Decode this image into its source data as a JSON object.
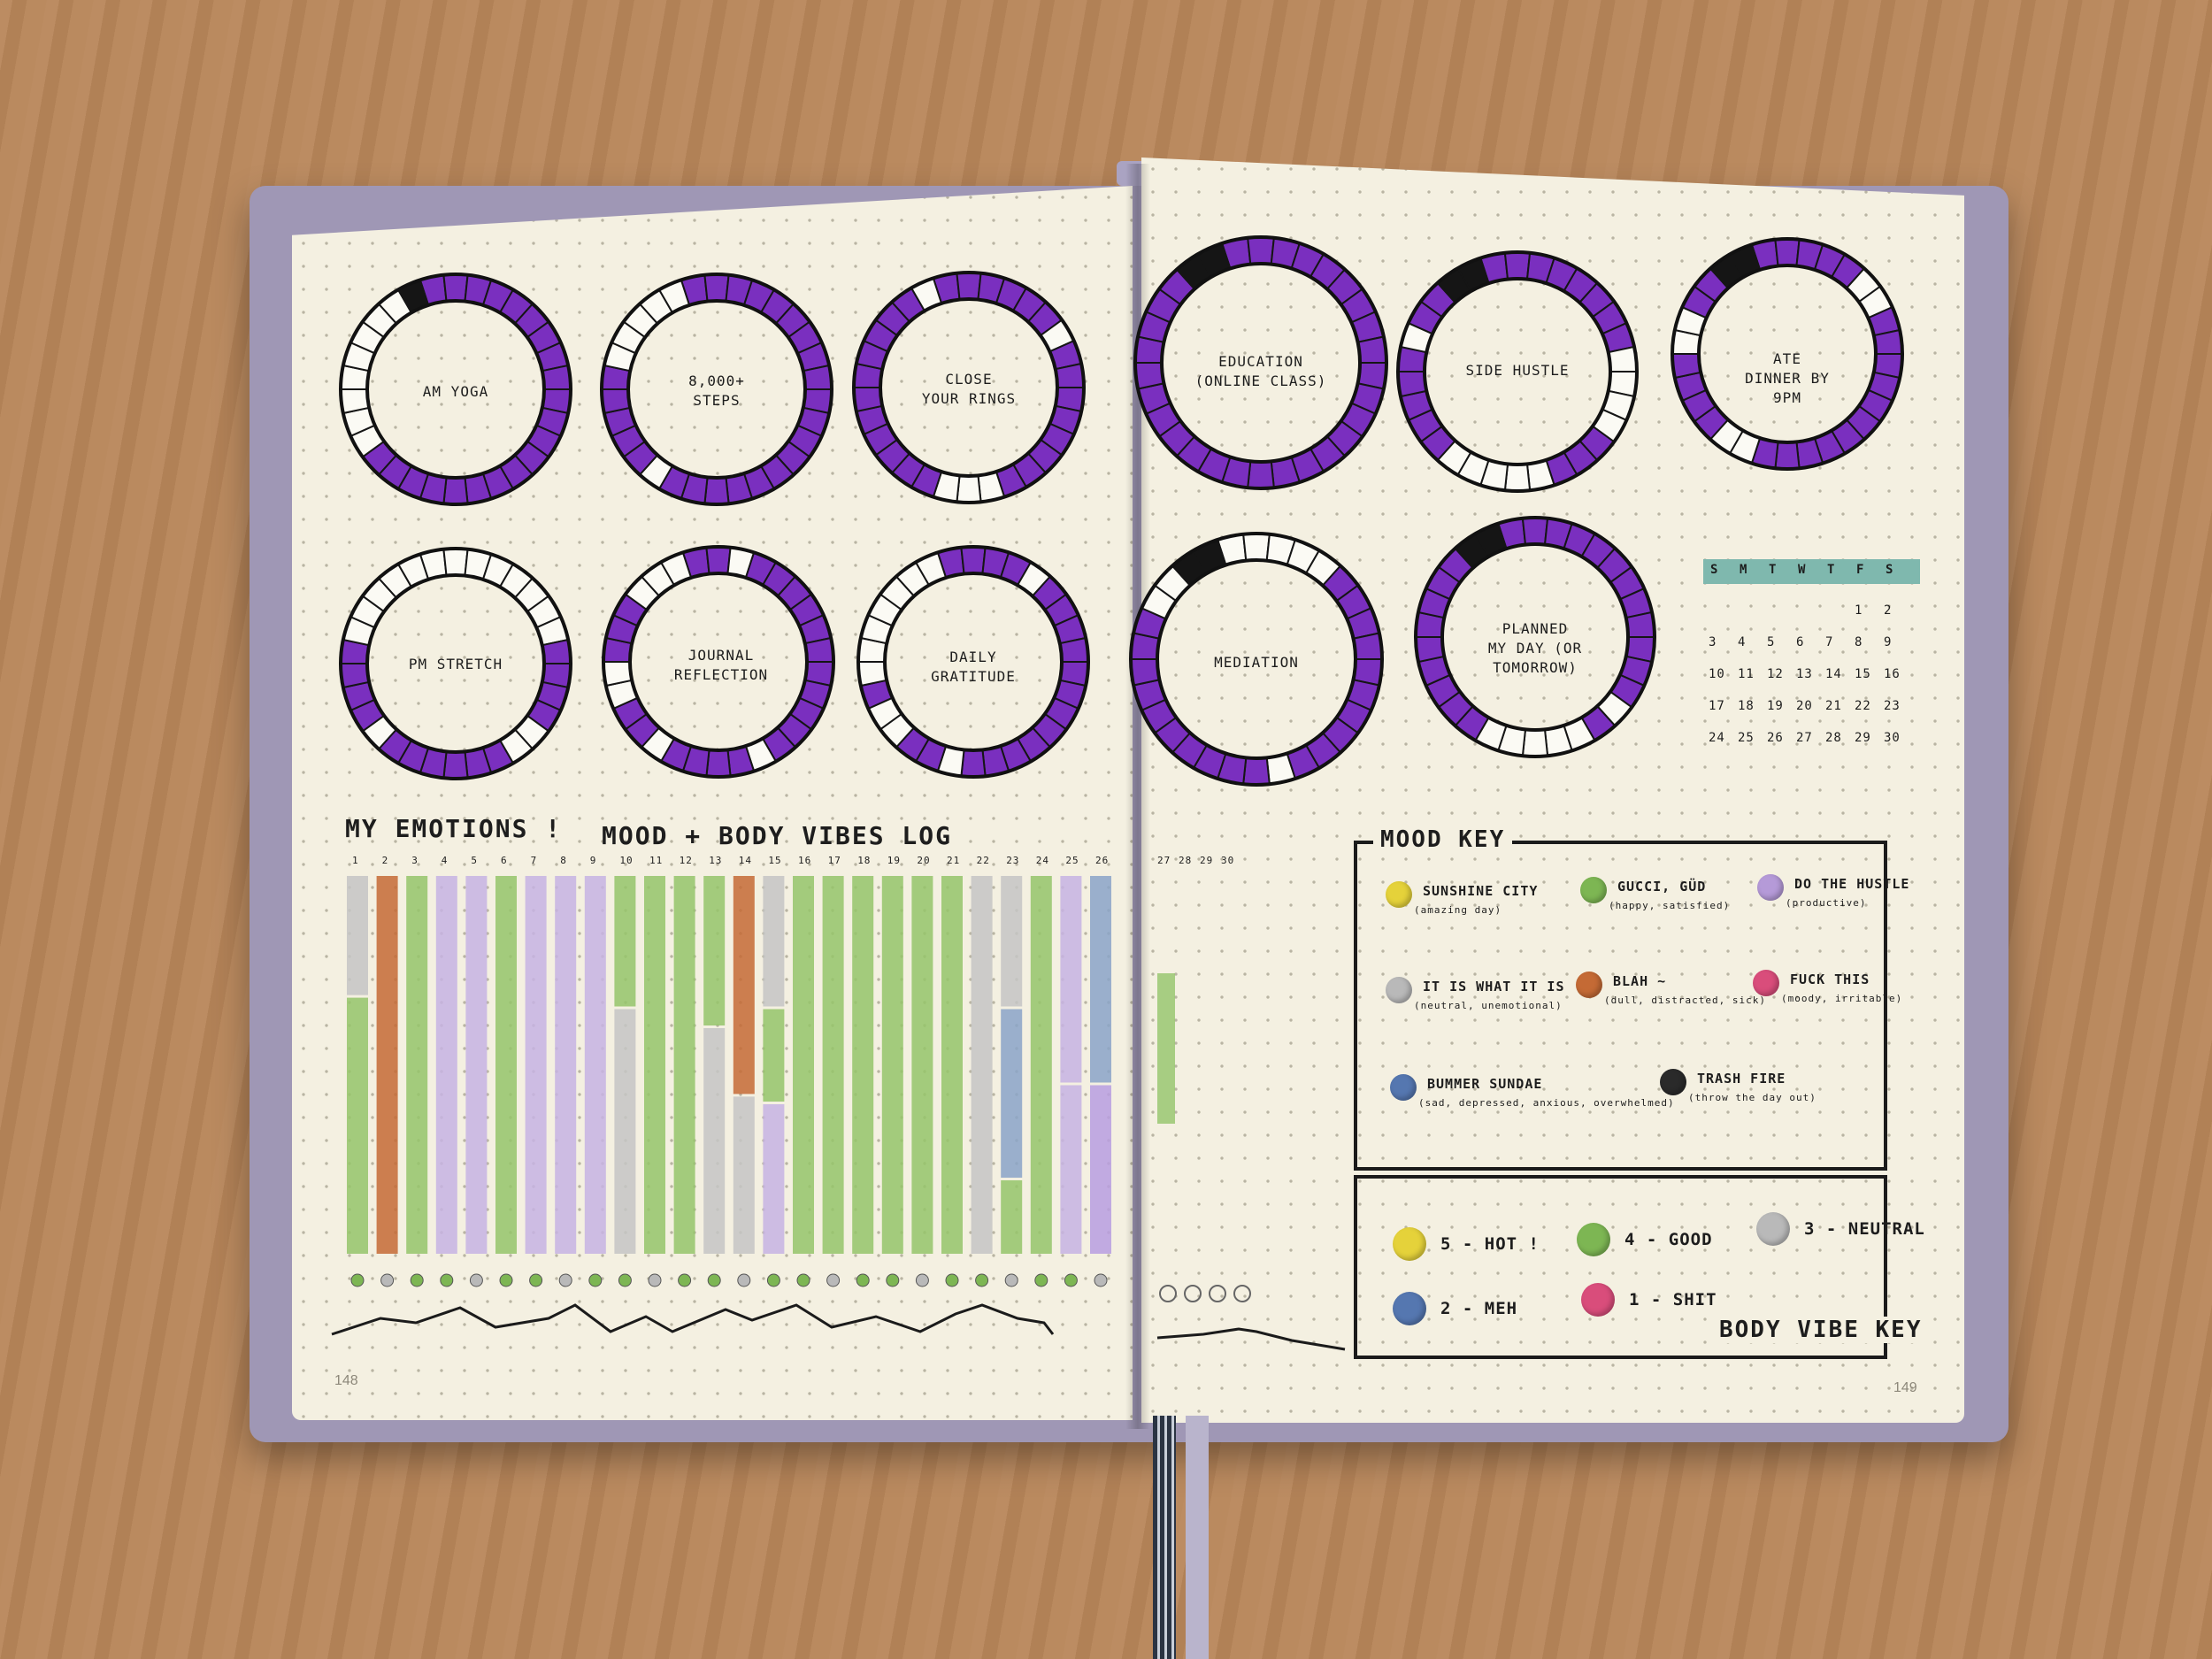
{
  "rings_left": [
    {
      "label": "AM YOGA",
      "cx": 0.0
    },
    {
      "label": "8,000+\nSTEPS"
    },
    {
      "label": "CLOSE\nYOUR RINGS"
    },
    {
      "label": "PM STRETCH"
    },
    {
      "label": "JOURNAL\nREFLECTION"
    },
    {
      "label": "DAILY\nGRATITUDE"
    }
  ],
  "rings_right": [
    {
      "label": "EDUCATION\n(ONLINE CLASS)"
    },
    {
      "label": "SIDE HUSTLE"
    },
    {
      "label": "ATE\nDINNER BY\n9PM"
    },
    {
      "label": "MEDIATION"
    },
    {
      "label": "PLANNED\nMY DAY (OR\nTOMORROW)"
    }
  ],
  "calendar": {
    "header": [
      "S",
      "M",
      "T",
      "W",
      "T",
      "F",
      "S"
    ],
    "rows": [
      [
        "",
        "",
        "",
        "",
        "",
        "1",
        "2"
      ],
      [
        "3",
        "4",
        "5",
        "6",
        "7",
        "8",
        "9"
      ],
      [
        "10",
        "11",
        "12",
        "13",
        "14",
        "15",
        "16"
      ],
      [
        "17",
        "18",
        "19",
        "20",
        "21",
        "22",
        "23"
      ],
      [
        "24",
        "25",
        "26",
        "27",
        "28",
        "29",
        "30"
      ]
    ],
    "header_color": "#7fb8ae"
  },
  "log": {
    "title_a": "MY EMOTIONS !",
    "title_b": "MOOD + BODY VIBES LOG",
    "days_left": [
      "1",
      "2",
      "3",
      "4",
      "5",
      "6",
      "7",
      "8",
      "9",
      "10",
      "11",
      "12",
      "13",
      "14",
      "15",
      "16",
      "17",
      "18",
      "19",
      "20",
      "21",
      "22",
      "23",
      "24",
      "25",
      "26"
    ],
    "days_right": [
      "27",
      "28",
      "29",
      "30"
    ]
  },
  "mood_key": {
    "title": "MOOD KEY",
    "items": [
      {
        "label": "SUNSHINE CITY",
        "sub": "(amazing day)",
        "color": "#e5d23a"
      },
      {
        "label": "GUCCI, GÜD",
        "sub": "(happy, satisfied)",
        "color": "#7db653"
      },
      {
        "label": "DO THE HUSTLE",
        "sub": "(productive)",
        "color": "#b59ad8"
      },
      {
        "label": "IT IS WHAT IT IS",
        "sub": "(neutral, unemotional)",
        "color": "#b9b9b9"
      },
      {
        "label": "BLAH ~",
        "sub": "(dull, distracted, sick)",
        "color": "#c46a35"
      },
      {
        "label": "FUCK THIS",
        "sub": "(moody, irritable)",
        "color": "#d94d7b"
      },
      {
        "label": "BUMMER SUNDAE",
        "sub": "(sad, depressed, anxious, overwhelmed)",
        "color": "#5577b0"
      },
      {
        "label": "TRASH FIRE",
        "sub": "(throw the day out)",
        "color": "#2a2a2a"
      }
    ]
  },
  "body_key": {
    "title": "BODY VIBE KEY",
    "items": [
      {
        "label": "5 - HOT !",
        "color": "#e5d23a"
      },
      {
        "label": "4 - GOOD",
        "color": "#7db653"
      },
      {
        "label": "3 - NEUTRAL",
        "color": "#b9b9b9"
      },
      {
        "label": "2 - MEH",
        "color": "#5577b0"
      },
      {
        "label": "1 - SHIT",
        "color": "#d94d7b"
      }
    ]
  },
  "page_numbers": {
    "left": "148",
    "right": "149"
  },
  "colors": {
    "purple": "#7a2fbf",
    "green": "#94c46a",
    "lavender": "#c5b3e3",
    "orange": "#c46a35",
    "gray": "#c4c4c4",
    "blue": "#8aa3c8"
  }
}
